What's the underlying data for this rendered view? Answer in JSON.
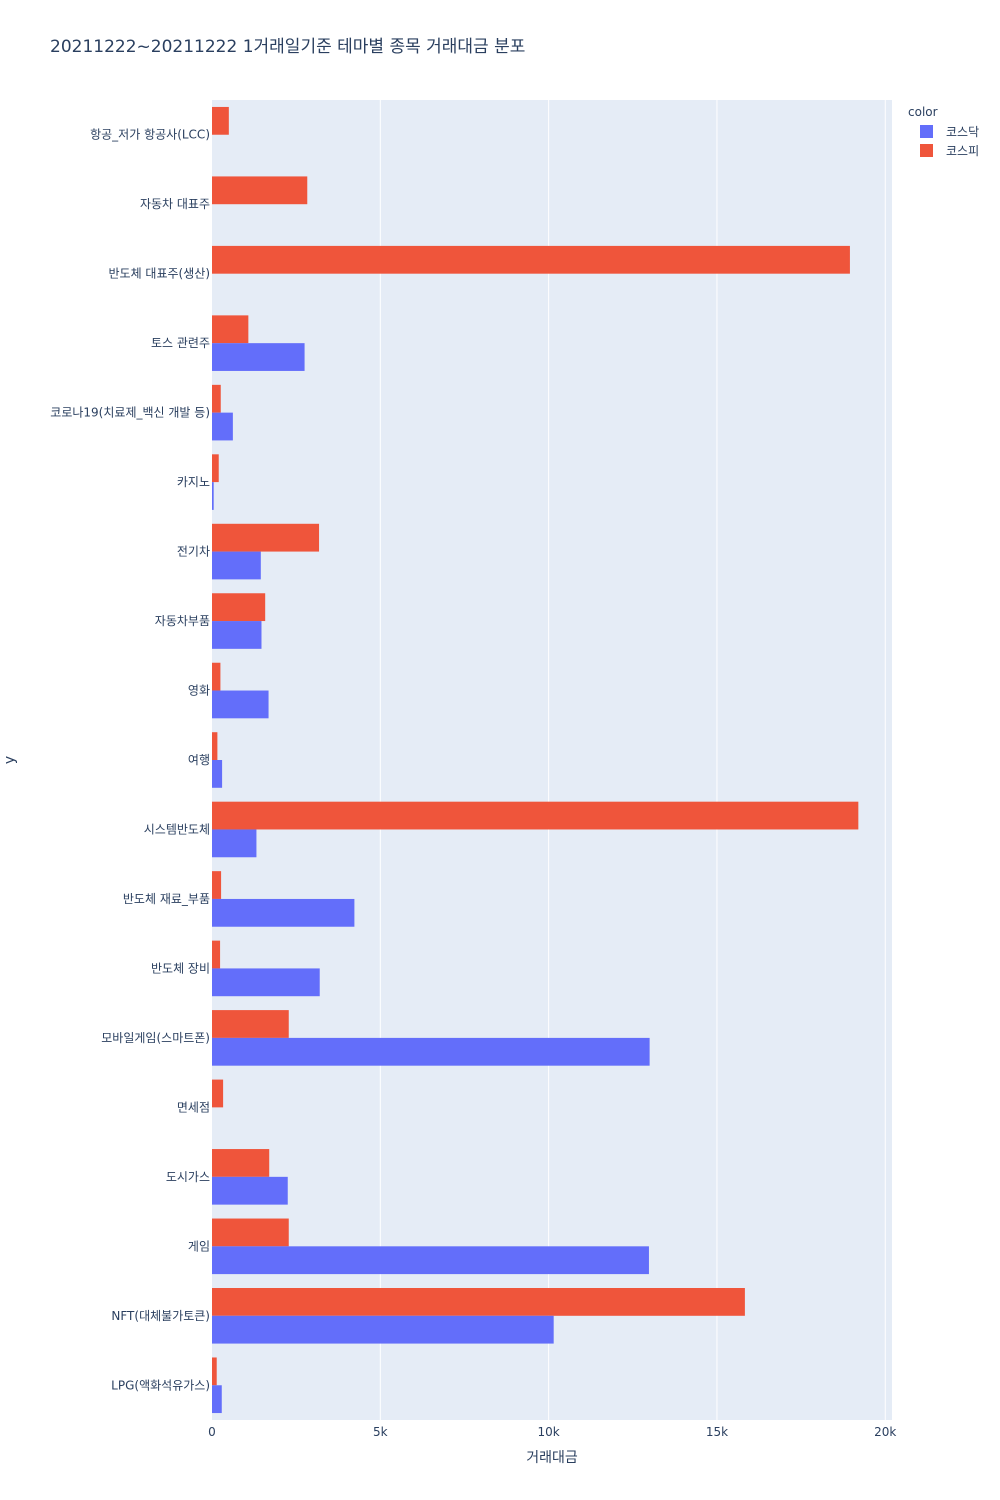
{
  "chart_data": {
    "type": "bar",
    "orientation": "horizontal",
    "barmode": "group",
    "title": "20211222~20211222 1거래일기준 테마별 종목 거래대금 분포",
    "xlabel": "거래대금",
    "ylabel": "y",
    "xlim": [
      0,
      20200
    ],
    "xticks": [
      {
        "value": 0,
        "label": "0"
      },
      {
        "value": 5000,
        "label": "5k"
      },
      {
        "value": 10000,
        "label": "10k"
      },
      {
        "value": 15000,
        "label": "15k"
      },
      {
        "value": 20000,
        "label": "20k"
      }
    ],
    "grid": true,
    "legend": {
      "title": "color",
      "position": "top-right"
    },
    "categories": [
      "항공_저가 항공사(LCC)",
      "자동차 대표주",
      "반도체 대표주(생산)",
      "토스 관련주",
      "코로나19(치료제_백신 개발 등)",
      "카지노",
      "전기차",
      "자동차부품",
      "영화",
      "여행",
      "시스템반도체",
      "반도체 재료_부품",
      "반도체 장비",
      "모바일게임(스마트폰)",
      "면세점",
      "도시가스",
      "게임",
      "NFT(대체불가토큰)",
      "LPG(액화석유가스)"
    ],
    "series": [
      {
        "name": "코스닥",
        "color": "#636efa",
        "values": [
          0,
          0,
          0,
          2750,
          620,
          50,
          1450,
          1470,
          1680,
          300,
          1320,
          4230,
          3200,
          13000,
          0,
          2250,
          12980,
          10150,
          290
        ]
      },
      {
        "name": "코스피",
        "color": "#ef553b",
        "values": [
          500,
          2830,
          18950,
          1080,
          260,
          200,
          3180,
          1580,
          250,
          160,
          19200,
          270,
          240,
          2280,
          330,
          1700,
          2280,
          15830,
          140
        ]
      }
    ]
  }
}
